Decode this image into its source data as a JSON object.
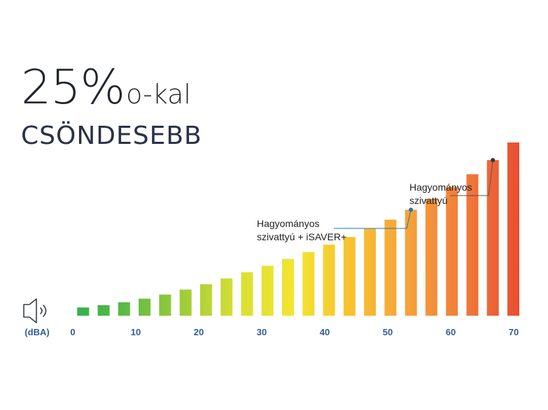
{
  "headline": {
    "big_number": "25%",
    "suffix": "o-kal",
    "subtitle": "CSÖNDESEBB"
  },
  "colors": {
    "axis_label": "#2e5d96",
    "title": "#222a3a",
    "annotation_line": "#1f77b4",
    "annotation_line_dark": "#555555",
    "gradient": [
      "#2fae4e",
      "#5bbb45",
      "#9ccc3a",
      "#d9df34",
      "#f3e52f",
      "#f7c22f",
      "#f6a23a",
      "#f07c3a",
      "#e94e31"
    ]
  },
  "speaker": {
    "icon": "speaker-icon"
  },
  "chart_data": {
    "type": "bar",
    "unit_label": "(dBA)",
    "xlim": [
      0,
      70
    ],
    "x_ticks": [
      0,
      10,
      20,
      30,
      40,
      50,
      60,
      70
    ],
    "x_tick_labels": [
      "0",
      "10",
      "20",
      "30",
      "40",
      "50",
      "60",
      "70"
    ],
    "bars": {
      "count": 22,
      "heights": [
        0.028,
        0.036,
        0.046,
        0.058,
        0.072,
        0.089,
        0.107,
        0.127,
        0.148,
        0.17,
        0.193,
        0.217,
        0.242,
        0.268,
        0.296,
        0.327,
        0.361,
        0.398,
        0.438,
        0.482,
        0.53,
        0.59
      ]
    },
    "annotations": [
      {
        "text_lines": [
          "Hagyományos",
          "szivattyú + iSAVER+"
        ],
        "value": 53,
        "marker_color": "#1f77b4"
      },
      {
        "text_lines": [
          "Hagyományos",
          "szivattyú"
        ],
        "value": 67,
        "marker_color": "#333333"
      }
    ]
  }
}
